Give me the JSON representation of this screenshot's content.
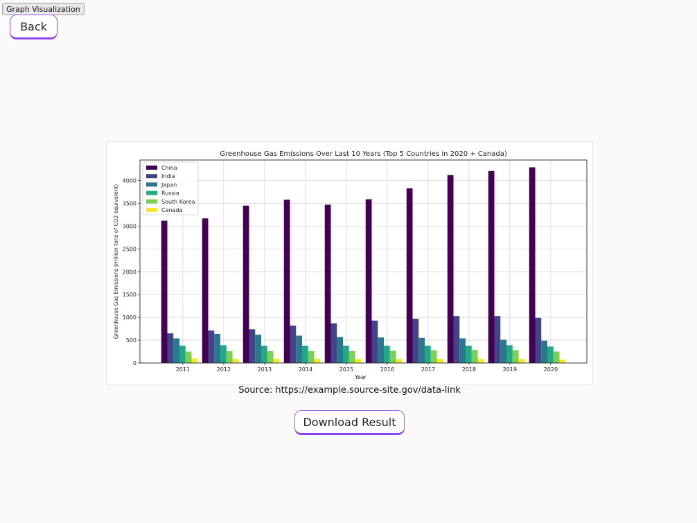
{
  "window": {
    "title": "Graph Visualization"
  },
  "nav": {
    "back_label": "Back"
  },
  "source_text": "Source: https://example.source-site.gov/data-link",
  "actions": {
    "download_label": "Download Result"
  },
  "chart_data": {
    "type": "bar",
    "title": "Greenhouse Gas Emissions Over Last 10 Years (Top 5 Countries in 2020 + Canada)",
    "xlabel": "Year",
    "ylabel": "Greenhouse Gas Emissions (million tons of CO2 equivalent)",
    "ylim": [
      0,
      4450
    ],
    "yticks": [
      0,
      500,
      1000,
      1500,
      2000,
      2500,
      3000,
      3500,
      4000
    ],
    "grid": true,
    "legend_position": "top-left",
    "categories": [
      "2011",
      "2012",
      "2013",
      "2014",
      "2015",
      "2016",
      "2017",
      "2018",
      "2019",
      "2020"
    ],
    "series": [
      {
        "name": "China",
        "color": "#440154",
        "values": [
          3120,
          3170,
          3450,
          3580,
          3470,
          3590,
          3830,
          4120,
          4210,
          4290
        ]
      },
      {
        "name": "India",
        "color": "#414487",
        "values": [
          650,
          710,
          740,
          820,
          870,
          930,
          970,
          1030,
          1030,
          990
        ]
      },
      {
        "name": "Japan",
        "color": "#2a788e",
        "values": [
          540,
          640,
          620,
          600,
          570,
          560,
          550,
          540,
          510,
          490
        ]
      },
      {
        "name": "Russia",
        "color": "#22a884",
        "values": [
          380,
          390,
          380,
          380,
          380,
          380,
          380,
          380,
          390,
          360
        ]
      },
      {
        "name": "South Korea",
        "color": "#7ad151",
        "values": [
          250,
          260,
          260,
          260,
          260,
          270,
          280,
          290,
          280,
          250
        ]
      },
      {
        "name": "Canada",
        "color": "#fde725",
        "values": [
          100,
          95,
          95,
          95,
          90,
          90,
          90,
          90,
          90,
          75
        ]
      }
    ]
  }
}
